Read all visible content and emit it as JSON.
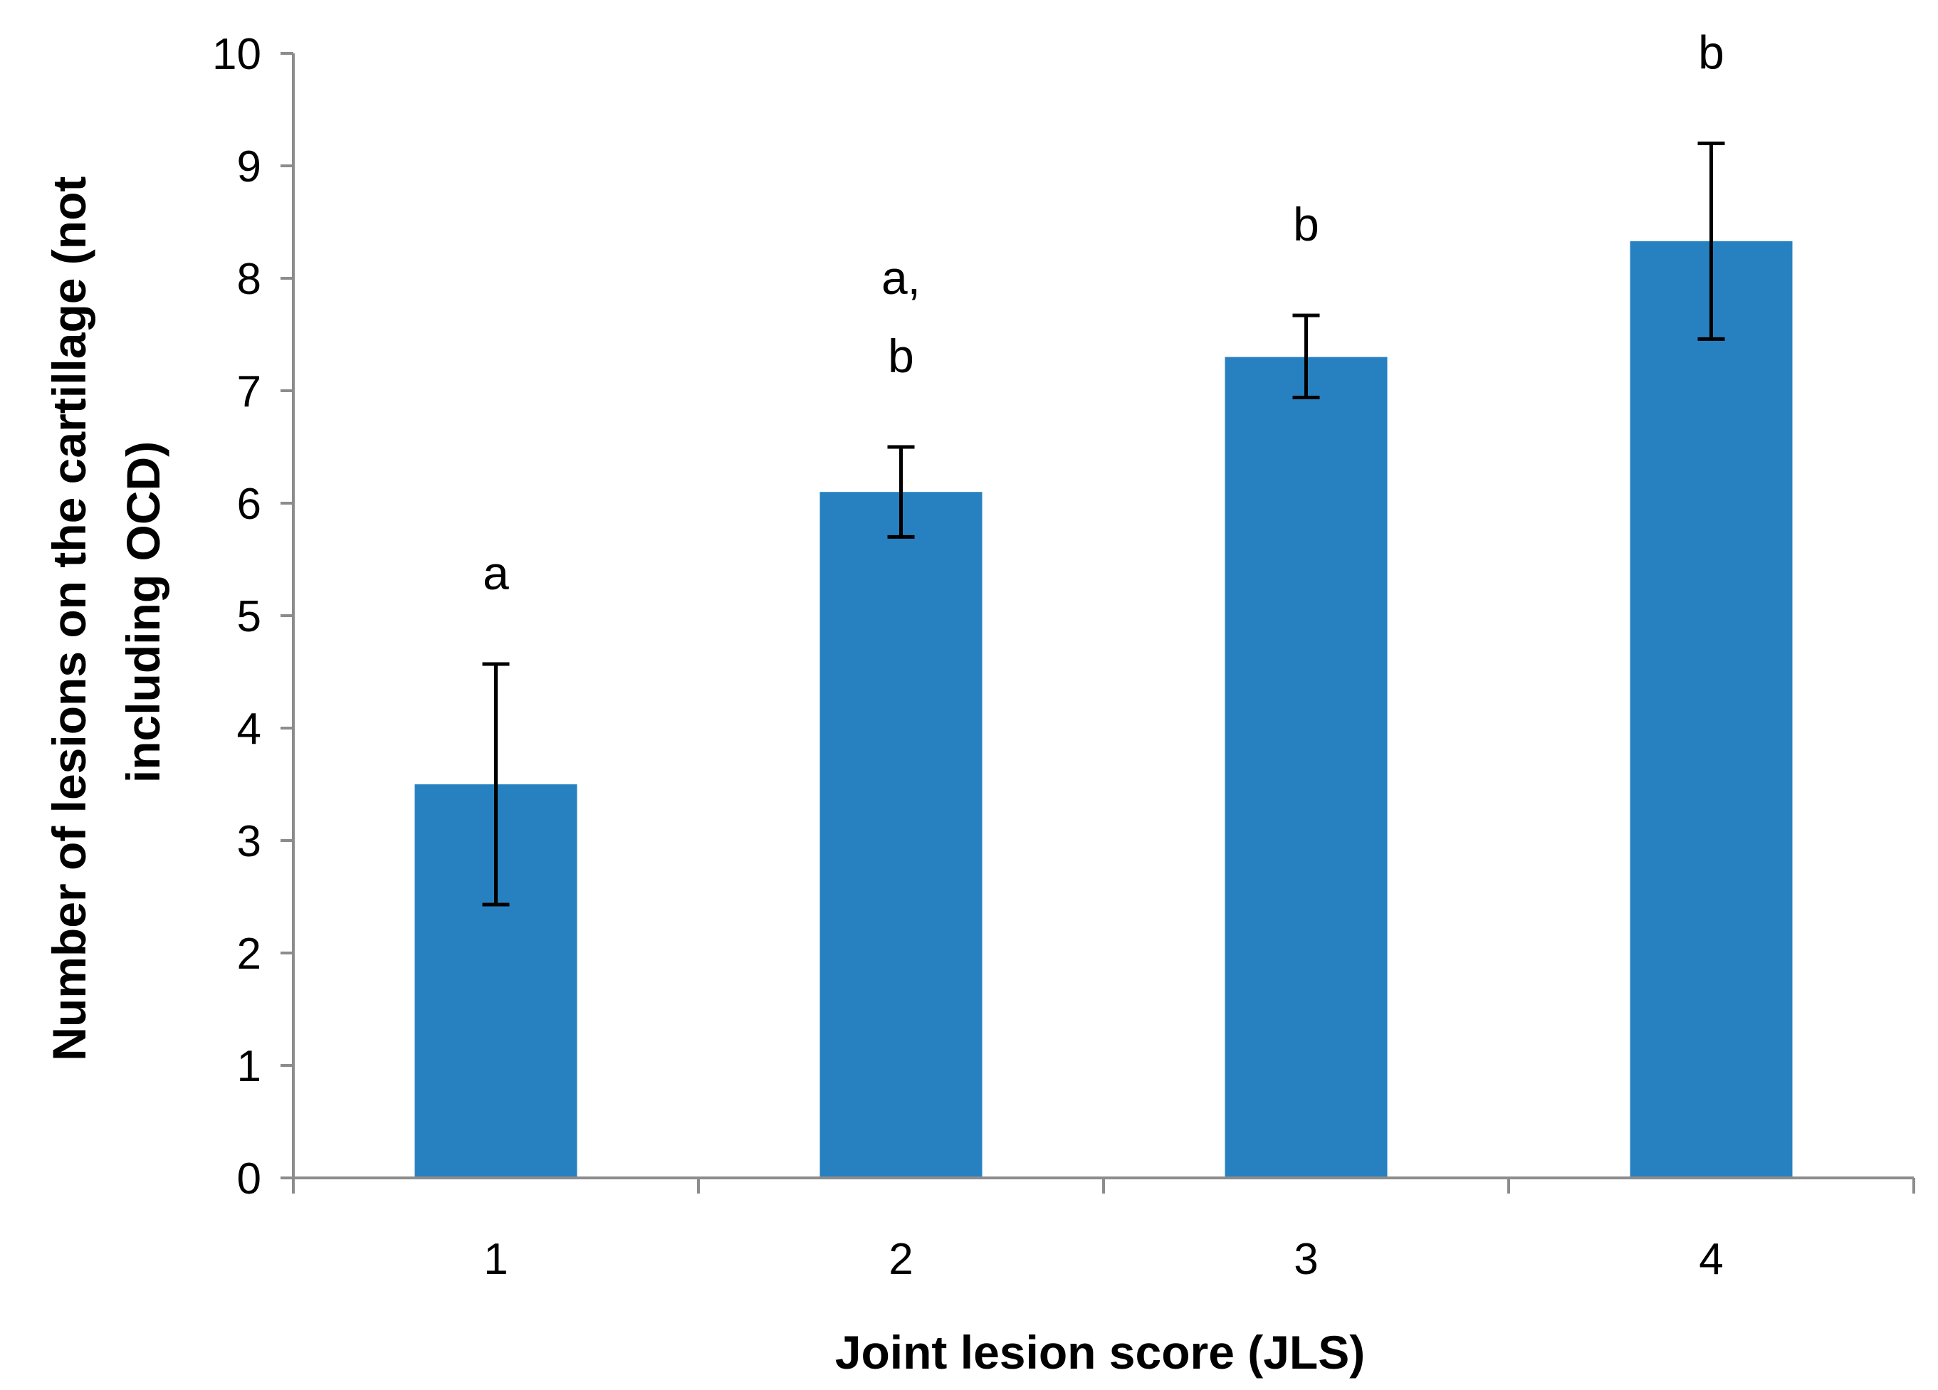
{
  "chart_data": {
    "type": "bar",
    "title": "",
    "xlabel": "Joint lesion score (JLS)",
    "ylabel_lines": [
      "Number of lesions on the cartillage (not",
      "including OCD)"
    ],
    "categories": [
      "1",
      "2",
      "3",
      "4"
    ],
    "values": [
      3.5,
      6.1,
      7.3,
      8.33
    ],
    "error_bars": [
      {
        "low": 2.43,
        "high": 4.57
      },
      {
        "low": 5.7,
        "high": 6.5
      },
      {
        "low": 6.94,
        "high": 7.67
      },
      {
        "low": 7.46,
        "high": 9.2
      }
    ],
    "significance_labels": [
      [
        "a"
      ],
      [
        "a,",
        "b"
      ],
      [
        "b"
      ],
      [
        "b"
      ]
    ],
    "ylim": [
      0,
      10
    ],
    "yticks": [
      "0",
      "1",
      "2",
      "3",
      "4",
      "5",
      "6",
      "7",
      "8",
      "9",
      "10"
    ],
    "grid": false,
    "legend": "none",
    "colors": {
      "bar": "#2781c1",
      "axis": "#8c8c8c",
      "error": "#000000"
    }
  }
}
